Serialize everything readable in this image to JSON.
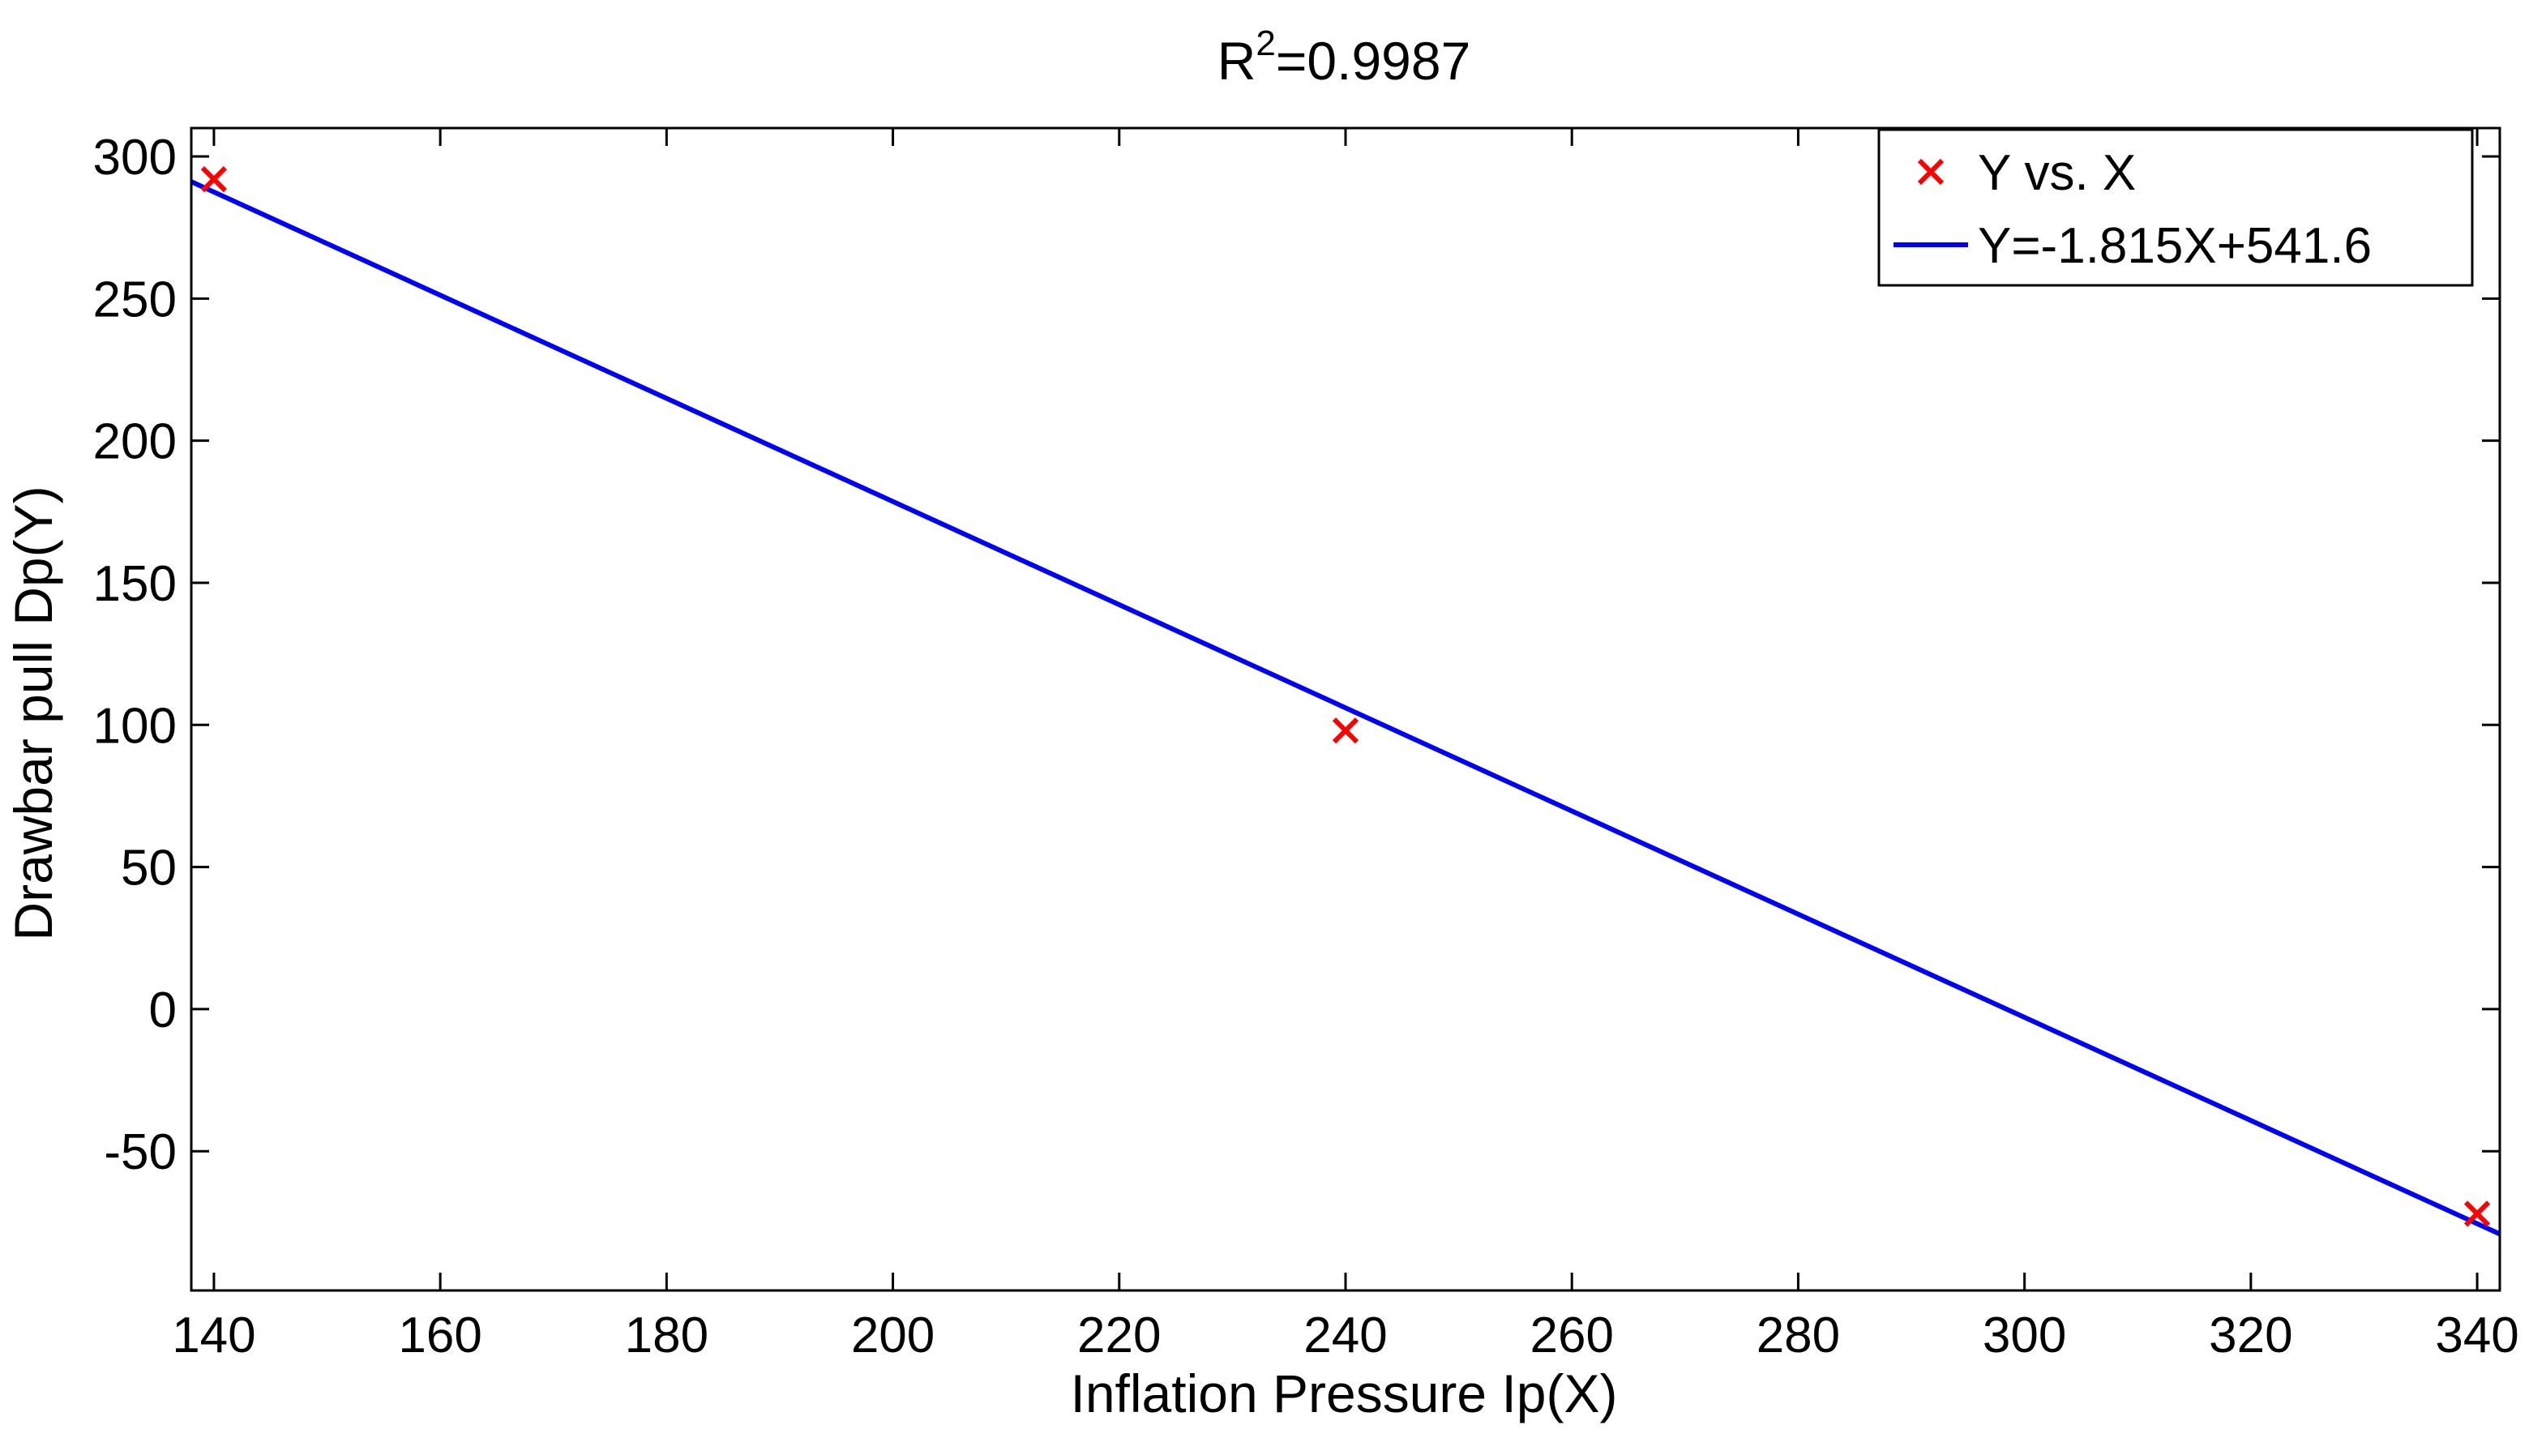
{
  "chart_data": {
    "type": "scatter",
    "title": "R²=0.9987",
    "title_base": "R",
    "title_sup": "2",
    "title_rest": "=0.9987",
    "xlabel": "Inflation Pressure Ip(X)",
    "ylabel": "Drawbar pull Dp(Y)",
    "xlim": [
      138,
      342
    ],
    "ylim": [
      -99,
      310
    ],
    "xticks": [
      140,
      160,
      180,
      200,
      220,
      240,
      260,
      280,
      300,
      320,
      340
    ],
    "yticks": [
      -50,
      0,
      50,
      100,
      150,
      200,
      250,
      300
    ],
    "grid": false,
    "legend_position": "top-right",
    "series": [
      {
        "name": "Y vs. X",
        "kind": "scatter",
        "marker": "x",
        "color": "#ff0000",
        "x": [
          140,
          240,
          340
        ],
        "y": [
          292,
          98,
          -72
        ]
      },
      {
        "name": "Y=-1.815X+541.6",
        "kind": "line",
        "color": "#0000ff",
        "slope": -1.815,
        "intercept": 541.6,
        "x": [
          138,
          342
        ]
      }
    ]
  }
}
